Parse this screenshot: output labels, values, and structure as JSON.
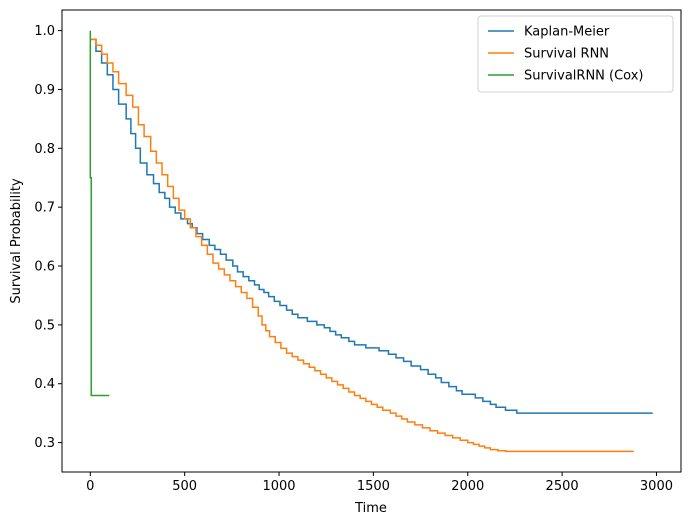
{
  "chart_data": {
    "type": "line",
    "step": true,
    "title": "",
    "xlabel": "Time",
    "ylabel": "Survival Probability",
    "xlim": [
      -150,
      3130
    ],
    "ylim": [
      0.25,
      1.035
    ],
    "xticks": [
      0,
      500,
      1000,
      1500,
      2000,
      2500,
      3000
    ],
    "yticks": [
      0.3,
      0.4,
      0.5,
      0.6,
      0.7,
      0.8,
      0.9,
      1.0
    ],
    "grid": false,
    "legend": "top-right",
    "series": [
      {
        "name": "Kaplan-Meier",
        "color": "#1f77b4",
        "x": [
          0,
          30,
          60,
          90,
          120,
          150,
          190,
          215,
          240,
          265,
          300,
          335,
          365,
          395,
          420,
          450,
          480,
          515,
          540,
          565,
          595,
          630,
          660,
          690,
          720,
          755,
          780,
          810,
          840,
          870,
          895,
          920,
          945,
          975,
          1005,
          1040,
          1070,
          1100,
          1150,
          1200,
          1240,
          1270,
          1300,
          1330,
          1370,
          1400,
          1460,
          1530,
          1580,
          1620,
          1660,
          1700,
          1750,
          1790,
          1830,
          1860,
          1900,
          1940,
          1970,
          2040,
          2080,
          2120,
          2150,
          2200,
          2260,
          2290,
          2340,
          2980
        ],
        "y": [
          0.985,
          0.965,
          0.945,
          0.925,
          0.9,
          0.875,
          0.85,
          0.825,
          0.8,
          0.775,
          0.755,
          0.74,
          0.725,
          0.715,
          0.7,
          0.69,
          0.68,
          0.672,
          0.665,
          0.655,
          0.645,
          0.635,
          0.628,
          0.62,
          0.61,
          0.6,
          0.59,
          0.582,
          0.575,
          0.568,
          0.56,
          0.555,
          0.548,
          0.54,
          0.533,
          0.525,
          0.518,
          0.512,
          0.506,
          0.5,
          0.495,
          0.489,
          0.483,
          0.478,
          0.472,
          0.466,
          0.461,
          0.456,
          0.45,
          0.444,
          0.438,
          0.43,
          0.424,
          0.416,
          0.41,
          0.402,
          0.395,
          0.388,
          0.382,
          0.376,
          0.37,
          0.365,
          0.36,
          0.355,
          0.35,
          0.35,
          0.35,
          0.35
        ]
      },
      {
        "name": "Survival RNN",
        "color": "#ff7f0e",
        "x": [
          0,
          30,
          60,
          90,
          120,
          150,
          190,
          225,
          255,
          285,
          320,
          350,
          380,
          410,
          440,
          470,
          500,
          530,
          560,
          590,
          620,
          650,
          680,
          710,
          740,
          770,
          800,
          830,
          860,
          890,
          910,
          930,
          950,
          980,
          1010,
          1040,
          1070,
          1100,
          1130,
          1160,
          1190,
          1220,
          1250,
          1280,
          1310,
          1340,
          1370,
          1400,
          1430,
          1460,
          1490,
          1520,
          1550,
          1590,
          1620,
          1650,
          1680,
          1720,
          1760,
          1800,
          1840,
          1880,
          1920,
          1960,
          2000,
          2030,
          2060,
          2090,
          2120,
          2160,
          2200,
          2240,
          2340,
          2880
        ],
        "y": [
          0.985,
          0.975,
          0.96,
          0.945,
          0.93,
          0.91,
          0.89,
          0.87,
          0.84,
          0.82,
          0.795,
          0.775,
          0.755,
          0.735,
          0.715,
          0.695,
          0.68,
          0.665,
          0.65,
          0.635,
          0.62,
          0.605,
          0.595,
          0.585,
          0.575,
          0.565,
          0.555,
          0.545,
          0.53,
          0.515,
          0.5,
          0.49,
          0.48,
          0.47,
          0.46,
          0.452,
          0.446,
          0.44,
          0.434,
          0.428,
          0.422,
          0.416,
          0.41,
          0.404,
          0.398,
          0.392,
          0.386,
          0.38,
          0.375,
          0.37,
          0.365,
          0.36,
          0.355,
          0.35,
          0.345,
          0.34,
          0.335,
          0.33,
          0.325,
          0.32,
          0.316,
          0.312,
          0.308,
          0.304,
          0.3,
          0.297,
          0.294,
          0.291,
          0.288,
          0.286,
          0.285,
          0.285,
          0.285,
          0.285
        ]
      },
      {
        "name": "SurvivalRNN (Cox)",
        "color": "#2ca02c",
        "x": [
          0,
          0,
          5,
          5,
          100
        ],
        "y": [
          1.0,
          0.75,
          0.75,
          0.38,
          0.38
        ]
      }
    ]
  }
}
